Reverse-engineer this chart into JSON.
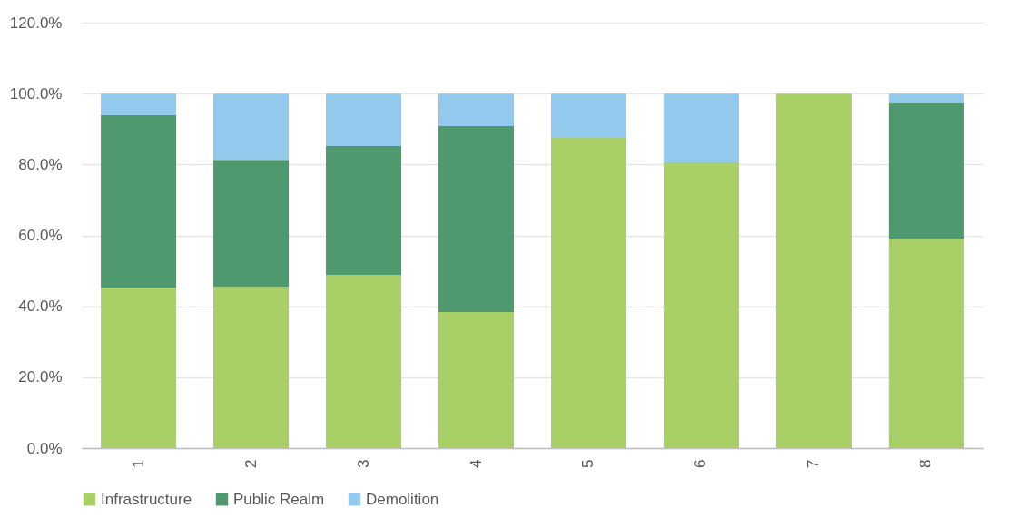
{
  "chart_data": {
    "type": "bar",
    "stacked": true,
    "categories": [
      "1",
      "2",
      "3",
      "4",
      "5",
      "6",
      "7",
      "8"
    ],
    "series": [
      {
        "name": "Infrastructure",
        "color": "#a9d066",
        "values": [
          45.3,
          45.5,
          48.8,
          38.4,
          87.5,
          80.6,
          100,
          59.1
        ]
      },
      {
        "name": "Public Realm",
        "color": "#4e9a6e",
        "values": [
          48.6,
          35.8,
          36.4,
          52.4,
          null,
          null,
          null,
          38.1
        ]
      },
      {
        "name": "Demolition",
        "color": "#92c9ec",
        "values": [
          6.1,
          18.7,
          14.8,
          9.2,
          12.5,
          19.4,
          null,
          2.8
        ]
      }
    ],
    "ylim": [
      0,
      120
    ],
    "yticks": [
      {
        "value": 0,
        "label": "0.0%"
      },
      {
        "value": 20,
        "label": "20.0%"
      },
      {
        "value": 40,
        "label": "40.0%"
      },
      {
        "value": 60,
        "label": "60.0%"
      },
      {
        "value": 80,
        "label": "80.0%"
      },
      {
        "value": 100,
        "label": "100.0%"
      },
      {
        "value": 120,
        "label": "120.0%"
      }
    ],
    "grid": "y",
    "legend": "bottom"
  }
}
